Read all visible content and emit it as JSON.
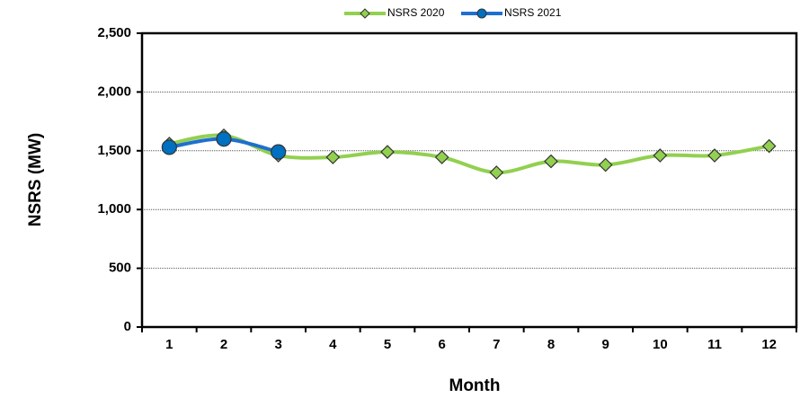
{
  "chart_data": {
    "type": "line",
    "x": [
      1,
      2,
      3,
      4,
      5,
      6,
      7,
      8,
      9,
      10,
      11,
      12
    ],
    "xlim": [
      0.5,
      12.5
    ],
    "xticks": [
      1,
      2,
      3,
      4,
      5,
      6,
      7,
      8,
      9,
      10,
      11,
      12
    ],
    "ylim": [
      0,
      2500
    ],
    "yticks": [
      0,
      500,
      {
        "value": 1000,
        "label": "1,000"
      },
      {
        "value": 1500,
        "label": "1,500"
      },
      {
        "value": 2000,
        "label": "2,000"
      },
      {
        "value": 2500,
        "label": "2,500"
      }
    ],
    "grid": true,
    "legend": "top",
    "xlabel": "Month",
    "ylabel": "NSRS (MW)",
    "series": [
      {
        "name": "NSRS 2020",
        "color": "#92d050",
        "marker": "diamond",
        "values": [
          1560,
          1630,
          1460,
          1445,
          1490,
          1445,
          1315,
          1410,
          1380,
          1460,
          1460,
          1540
        ]
      },
      {
        "name": "NSRS 2021",
        "color": "#1f6fd0",
        "marker": "circle",
        "values": [
          1530,
          1600,
          1490,
          null,
          null,
          null,
          null,
          null,
          null,
          null,
          null,
          null
        ]
      }
    ]
  }
}
